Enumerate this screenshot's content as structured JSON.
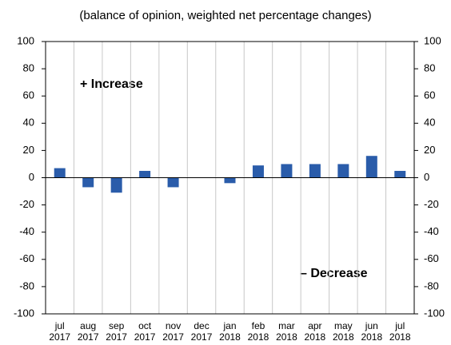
{
  "chart_data": {
    "type": "bar",
    "title": "(balance of opinion, weighted net percentage changes)",
    "categories": [
      "jul 2017",
      "aug 2017",
      "sep 2017",
      "oct 2017",
      "nov 2017",
      "dec 2017",
      "jan 2018",
      "feb 2018",
      "mar 2018",
      "apr 2018",
      "may 2018",
      "jun 2018",
      "jul 2018"
    ],
    "values": [
      7,
      -7,
      -11,
      5,
      -7,
      0,
      -4,
      9,
      10,
      10,
      10,
      16,
      5
    ],
    "color": "#2a5caa",
    "ylim": [
      -100,
      100
    ],
    "yticks": [
      -100,
      -80,
      -60,
      -40,
      -20,
      0,
      20,
      40,
      60,
      80,
      100
    ],
    "y2lim": [
      -100,
      100
    ],
    "y2ticks": [
      -100,
      -80,
      -60,
      -40,
      -20,
      0,
      20,
      40,
      60,
      80,
      100
    ],
    "annotations": [
      "+ Increase",
      "– Decrease"
    ]
  }
}
